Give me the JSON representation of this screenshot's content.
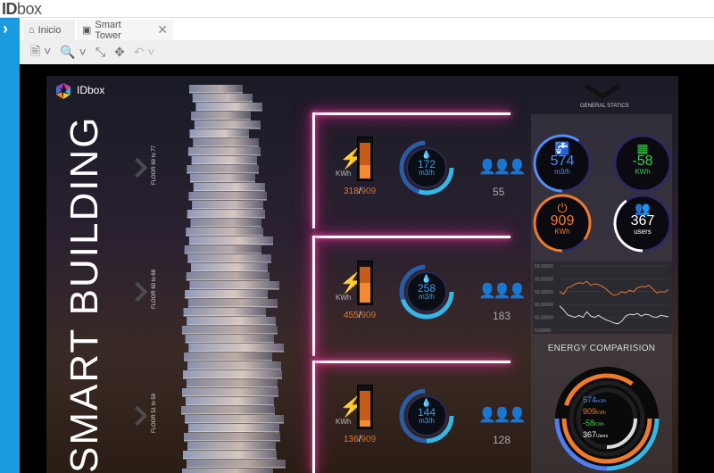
{
  "app": {
    "logo_bold": "ID",
    "logo_rest": "box"
  },
  "tabs": [
    {
      "label": "Inicio",
      "icon": "home-icon"
    },
    {
      "label": "Smart Tower",
      "icon": "image-icon",
      "closable": true
    }
  ],
  "toolbar": {
    "icons": [
      "document-icon",
      "zoom-icon",
      "fit-icon",
      "collapse-icon",
      "undo-icon"
    ]
  },
  "dashboard": {
    "logo": "IDbox",
    "title": "SMART BUILDING",
    "general_statics": "GENERAL STATICS",
    "floors": [
      {
        "label": "FLOOR 69 to 77",
        "energy_unit": "KWh",
        "energy_used": "318",
        "energy_max": "909",
        "energy_fraction": 0.35,
        "water": "172",
        "water_unit": "m3/h",
        "water_fraction": 0.3,
        "people": "55"
      },
      {
        "label": "FLOOR 60 to 68",
        "energy_unit": "KWh",
        "energy_used": "455",
        "energy_max": "909",
        "energy_fraction": 0.5,
        "water": "258",
        "water_unit": "m3/h",
        "water_fraction": 0.45,
        "people": "183"
      },
      {
        "label": "FLOOR 51 to 59",
        "energy_unit": "KWh",
        "energy_used": "136",
        "energy_max": "909",
        "energy_fraction": 0.15,
        "water": "144",
        "water_unit": "m3/h",
        "water_fraction": 0.25,
        "people": "128"
      }
    ],
    "stats": [
      {
        "value": "574",
        "unit": "m3/h",
        "color": "#4f8ef7",
        "icon": "faucet-icon",
        "fraction": 0.6
      },
      {
        "value": "-58",
        "unit": "KWh",
        "color": "#3ecf4a",
        "icon": "solar-panel-icon",
        "fraction": 0.0
      },
      {
        "value": "909",
        "unit": "KWh",
        "color": "#f07a2a",
        "icon": "plug-icon",
        "fraction": 0.85
      },
      {
        "value": "367",
        "unit": "users",
        "color": "#ffffff",
        "icon": "users-icon",
        "fraction": 0.4
      }
    ],
    "chart": {
      "y_ticks": [
        "50,00000",
        "00,00000",
        "50,00000",
        "00,00000",
        "50,00000",
        "0,00000"
      ]
    },
    "energy_comparison": {
      "title": "ENERGY COMPARISION",
      "items": [
        {
          "value": "574",
          "unit": "m3/h",
          "color": "#4f8ef7"
        },
        {
          "value": "909",
          "unit": "KWh",
          "color": "#f07a2a"
        },
        {
          "value": "-58",
          "unit": "KWh",
          "color": "#3ecf4a"
        },
        {
          "value": "367",
          "unit": "Users",
          "color": "#ffffff"
        }
      ]
    }
  },
  "chart_data": {
    "type": "line",
    "y_ticks": [
      "50,00000",
      "00,00000",
      "50,00000",
      "00,00000",
      "50,00000",
      "0,00000"
    ],
    "series": [
      {
        "color": "#e87a30",
        "values": [
          150,
          140,
          165,
          170,
          180,
          185,
          182,
          190,
          175,
          180,
          178,
          170,
          160,
          145,
          135,
          140,
          150,
          145,
          155,
          150,
          165,
          170,
          168,
          175,
          160,
          145,
          150,
          148,
          158
        ]
      },
      {
        "color": "#dddddd",
        "values": [
          95,
          80,
          60,
          55,
          50,
          58,
          50,
          72,
          55,
          50,
          58,
          48,
          40,
          35,
          28,
          25,
          35,
          55,
          62,
          60,
          65,
          55,
          62,
          60,
          52,
          50,
          58,
          55,
          52
        ]
      }
    ]
  }
}
